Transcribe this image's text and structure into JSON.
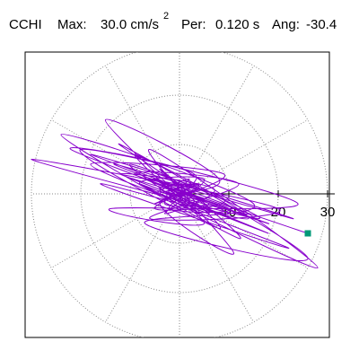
{
  "header": {
    "station": "CCHI",
    "max_label": "Max:",
    "max_value": "30.0 cm/s",
    "max_exponent": "2",
    "per_label": "Per:",
    "per_value": "0.120 s",
    "ang_label": "Ang:",
    "ang_value": "-30.4"
  },
  "colors": {
    "trace": "#8800cc",
    "endpoint": "#009977",
    "grid": "#888888",
    "frame": "#000000"
  },
  "chart_data": {
    "type": "line",
    "coordinate_system": "polar",
    "radial_unit": "cm/s^2",
    "radial_range": [
      0,
      30
    ],
    "radial_rings": [
      10,
      20,
      30
    ],
    "radial_tick_labels": [
      "10",
      "20",
      "30"
    ],
    "angular_grid_step_deg": 30,
    "grid": true,
    "series": [
      {
        "values_xy": [
          [
            0,
            0
          ],
          [
            3,
            2
          ],
          [
            -4,
            1
          ],
          [
            6,
            -2
          ],
          [
            -3,
            -2
          ],
          [
            2,
            3
          ],
          [
            -5,
            0
          ],
          [
            4,
            2
          ],
          [
            -2,
            -3
          ],
          [
            10,
            -3
          ],
          [
            -12,
            4
          ],
          [
            7,
            1
          ],
          [
            -3,
            -4
          ],
          [
            5,
            3
          ],
          [
            -8,
            2
          ],
          [
            14,
            -4
          ],
          [
            -18,
            8
          ],
          [
            9,
            -1
          ],
          [
            -5,
            -3
          ],
          [
            3,
            4
          ],
          [
            -22,
            9
          ],
          [
            18,
            -6
          ],
          [
            -9,
            4
          ],
          [
            12,
            2
          ],
          [
            -6,
            -5
          ],
          [
            20,
            -3
          ],
          [
            -30,
            7
          ],
          [
            16,
            -5
          ],
          [
            -10,
            6
          ],
          [
            5,
            -6
          ],
          [
            -14,
            -3
          ],
          [
            24,
            -2
          ],
          [
            -20,
            9
          ],
          [
            8,
            -7
          ],
          [
            -4,
            5
          ],
          [
            12,
            -9
          ],
          [
            -24,
            12
          ],
          [
            15,
            -2
          ],
          [
            -7,
            -6
          ],
          [
            26,
            -13
          ],
          [
            -12,
            10
          ],
          [
            6,
            -3
          ],
          [
            -18,
            6
          ],
          [
            9,
            4
          ],
          [
            -5,
            -2
          ],
          [
            4,
            2
          ],
          [
            -2,
            -1
          ],
          [
            22,
            -11
          ],
          [
            -16,
            2
          ],
          [
            14,
            -5
          ],
          [
            -9,
            8
          ],
          [
            4,
            -4
          ],
          [
            -15,
            15
          ],
          [
            8,
            3
          ],
          [
            -4,
            -2
          ],
          [
            11,
            -12
          ],
          [
            -6,
            9
          ],
          [
            28,
            -15
          ],
          [
            -10,
            3
          ],
          [
            18,
            -8
          ],
          [
            -8,
            2
          ],
          [
            6,
            -4
          ],
          [
            -3,
            2
          ],
          [
            23,
            -5
          ],
          [
            -13,
            6
          ],
          [
            5,
            -1
          ],
          [
            -7,
            3
          ],
          [
            3,
            1
          ],
          [
            -1,
            -1
          ],
          [
            10,
            -4
          ],
          [
            -5,
            3
          ],
          [
            2,
            -1
          ],
          [
            -1,
            1
          ],
          [
            26,
            -8
          ]
        ]
      }
    ],
    "endpoint_xy": [
      26,
      -8
    ]
  }
}
